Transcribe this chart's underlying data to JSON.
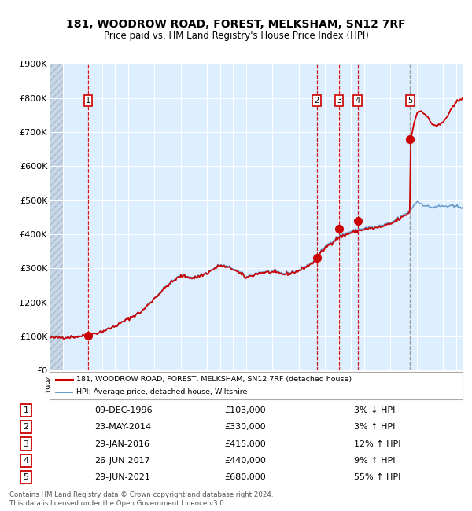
{
  "title1": "181, WOODROW ROAD, FOREST, MELKSHAM, SN12 7RF",
  "title2": "Price paid vs. HM Land Registry's House Price Index (HPI)",
  "ylim": [
    0,
    900000
  ],
  "yticks": [
    0,
    100000,
    200000,
    300000,
    400000,
    500000,
    600000,
    700000,
    800000,
    900000
  ],
  "ytick_labels": [
    "£0",
    "£100K",
    "£200K",
    "£300K",
    "£400K",
    "£500K",
    "£600K",
    "£700K",
    "£800K",
    "£900K"
  ],
  "sale_dates_num": [
    1996.94,
    2014.39,
    2016.08,
    2017.49,
    2021.49
  ],
  "sale_prices": [
    103000,
    330000,
    415000,
    440000,
    680000
  ],
  "sale_labels": [
    "1",
    "2",
    "3",
    "4",
    "5"
  ],
  "vline_colors_red": [
    "#cc0000",
    "#cc0000",
    "#cc0000",
    "#cc0000"
  ],
  "vline_color_gray": "#999999",
  "red_line_color": "#cc0000",
  "blue_line_color": "#6699cc",
  "bg_color": "#ddeeff",
  "hatch_bg_color": "#c8d8e8",
  "grid_color": "#ffffff",
  "table_rows": [
    [
      "1",
      "09-DEC-1996",
      "£103,000",
      "3% ↓ HPI"
    ],
    [
      "2",
      "23-MAY-2014",
      "£330,000",
      "3% ↑ HPI"
    ],
    [
      "3",
      "29-JAN-2016",
      "£415,000",
      "12% ↑ HPI"
    ],
    [
      "4",
      "26-JUN-2017",
      "£440,000",
      "9% ↑ HPI"
    ],
    [
      "5",
      "29-JUN-2021",
      "£680,000",
      "55% ↑ HPI"
    ]
  ],
  "footnote": "Contains HM Land Registry data © Crown copyright and database right 2024.\nThis data is licensed under the Open Government Licence v3.0.",
  "xmin": 1994.0,
  "xmax": 2025.5,
  "hatch_end": 1995.0,
  "legend_red_label": "181, WOODROW ROAD, FOREST, MELKSHAM, SN12 7RF (detached house)",
  "legend_blue_label": "HPI: Average price, detached house, Wiltshire"
}
